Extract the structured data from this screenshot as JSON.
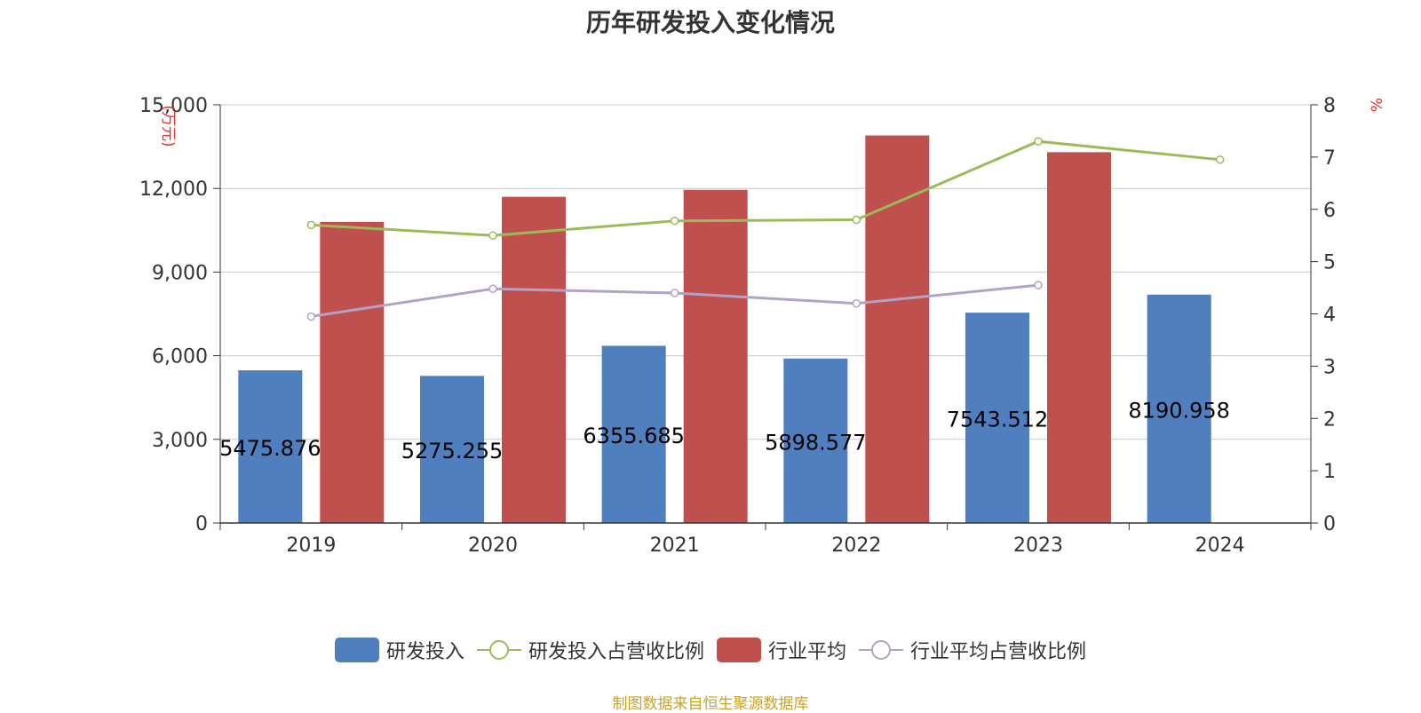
{
  "title": "历年研发投入变化情况",
  "source": "制图数据来自恒生聚源数据库",
  "chart_data": {
    "type": "bar",
    "categories": [
      "2019",
      "2020",
      "2021",
      "2022",
      "2023",
      "2024"
    ],
    "y_left": {
      "unit": "万元",
      "ylim": [
        0,
        15000
      ],
      "ticks": [
        "0",
        "3,000",
        "6,000",
        "9,000",
        "12,000",
        "15,000"
      ],
      "tick_values": [
        0,
        3000,
        6000,
        9000,
        12000,
        15000
      ]
    },
    "y_right": {
      "unit": "%",
      "ylim": [
        0,
        8
      ],
      "ticks": [
        "0",
        "1",
        "2",
        "3",
        "4",
        "5",
        "6",
        "7",
        "8"
      ],
      "tick_values": [
        0,
        1,
        2,
        3,
        4,
        5,
        6,
        7,
        8
      ]
    },
    "grid": true,
    "legend_position": "bottom",
    "series": [
      {
        "name": "研发投入",
        "type": "bar",
        "axis": "left",
        "color": "#4f7fbf",
        "values": [
          5475.876,
          5275.255,
          6355.685,
          5898.577,
          7543.512,
          8190.958
        ],
        "labels": [
          "5475.876",
          "5275.255",
          "6355.685",
          "5898.577",
          "7543.512",
          "8190.958"
        ]
      },
      {
        "name": "研发投入占营收比例",
        "type": "line",
        "axis": "right",
        "color": "#9bbb59",
        "values": [
          5.7,
          5.5,
          5.78,
          5.8,
          7.3,
          6.95
        ]
      },
      {
        "name": "行业平均",
        "type": "bar",
        "axis": "left",
        "color": "#c0504d",
        "values": [
          10800,
          11700,
          11950,
          13900,
          13300,
          null
        ]
      },
      {
        "name": "行业平均占营收比例",
        "type": "line",
        "axis": "right",
        "color": "#b3a2c7",
        "values": [
          3.95,
          4.48,
          4.4,
          4.2,
          4.55,
          null
        ]
      }
    ]
  }
}
